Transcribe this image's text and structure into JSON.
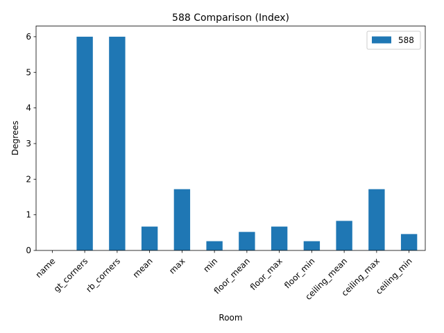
{
  "chart_data": {
    "type": "bar",
    "title": "588 Comparison (Index)",
    "xlabel": "Room",
    "ylabel": "Degrees",
    "categories": [
      "name",
      "gt_corners",
      "rb_corners",
      "mean",
      "max",
      "min",
      "floor_mean",
      "floor_max",
      "floor_min",
      "ceiling_mean",
      "ceiling_max",
      "ceiling_min"
    ],
    "series": [
      {
        "name": "588",
        "color": "#1f77b4",
        "values": [
          0,
          6,
          6,
          0.67,
          1.72,
          0.26,
          0.52,
          0.67,
          0.26,
          0.83,
          1.72,
          0.46
        ]
      }
    ],
    "ylim": [
      0,
      6.3
    ],
    "yticks": [
      0,
      1,
      2,
      3,
      4,
      5,
      6
    ],
    "grid": false,
    "legend_position": "top-right"
  }
}
